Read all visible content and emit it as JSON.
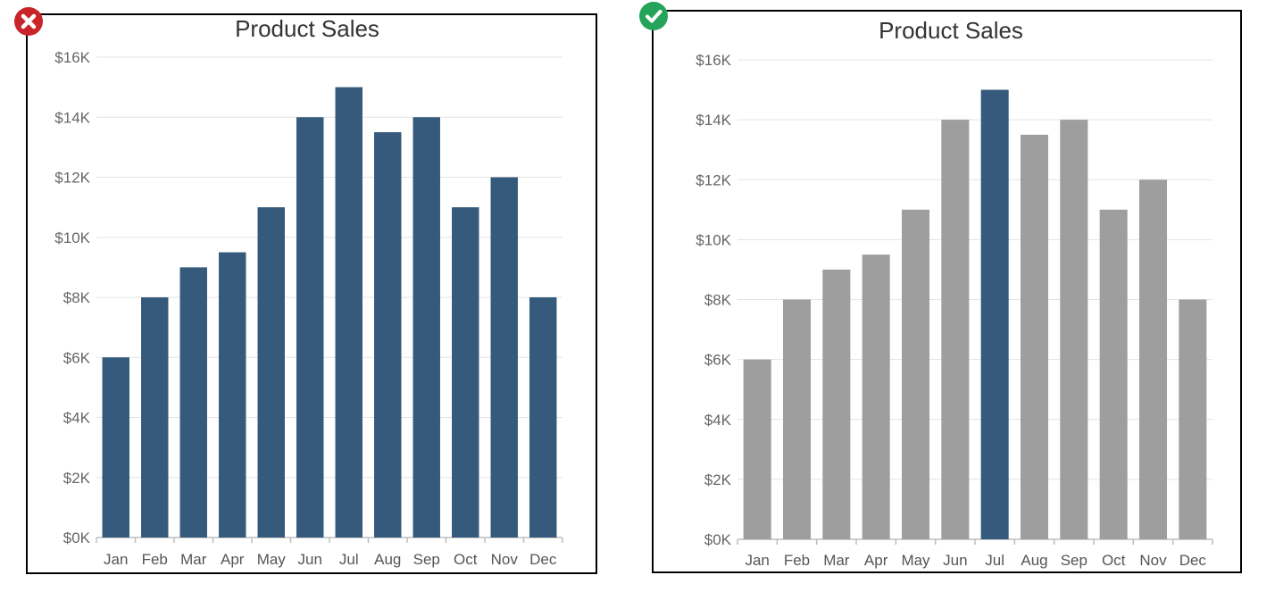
{
  "panels": [
    {
      "status": "incorrect",
      "badge_icon": "cross-icon",
      "border_color": "#d9262b",
      "badge_color": "#c9242a",
      "chart_data": {
        "type": "bar",
        "title": "Product Sales",
        "categories": [
          "Jan",
          "Feb",
          "Mar",
          "Apr",
          "May",
          "Jun",
          "Jul",
          "Aug",
          "Sep",
          "Oct",
          "Nov",
          "Dec"
        ],
        "values": [
          6000,
          8000,
          9000,
          9500,
          11000,
          14000,
          15000,
          13500,
          14000,
          11000,
          12000,
          8000
        ],
        "ylim": [
          0,
          16000
        ],
        "y_ticks": [
          0,
          2000,
          4000,
          6000,
          8000,
          10000,
          12000,
          14000,
          16000
        ],
        "y_tick_labels": [
          "$0K",
          "$2K",
          "$4K",
          "$6K",
          "$8K",
          "$10K",
          "$12K",
          "$14K",
          "$16K"
        ],
        "xlabel": "",
        "ylabel": "",
        "grid": true,
        "highlight_index": null,
        "bar_color": "#355a7b",
        "muted_color": "#9e9e9e"
      }
    },
    {
      "status": "correct",
      "badge_icon": "check-icon",
      "border_color": "#2db55d",
      "badge_color": "#25a35a",
      "chart_data": {
        "type": "bar",
        "title": "Product Sales",
        "categories": [
          "Jan",
          "Feb",
          "Mar",
          "Apr",
          "May",
          "Jun",
          "Jul",
          "Aug",
          "Sep",
          "Oct",
          "Nov",
          "Dec"
        ],
        "values": [
          6000,
          8000,
          9000,
          9500,
          11000,
          14000,
          15000,
          13500,
          14000,
          11000,
          12000,
          8000
        ],
        "ylim": [
          0,
          16000
        ],
        "y_ticks": [
          0,
          2000,
          4000,
          6000,
          8000,
          10000,
          12000,
          14000,
          16000
        ],
        "y_tick_labels": [
          "$0K",
          "$2K",
          "$4K",
          "$6K",
          "$8K",
          "$10K",
          "$12K",
          "$14K",
          "$16K"
        ],
        "xlabel": "",
        "ylabel": "",
        "grid": true,
        "highlight_index": 6,
        "bar_color": "#355a7b",
        "muted_color": "#9e9e9e"
      }
    }
  ]
}
